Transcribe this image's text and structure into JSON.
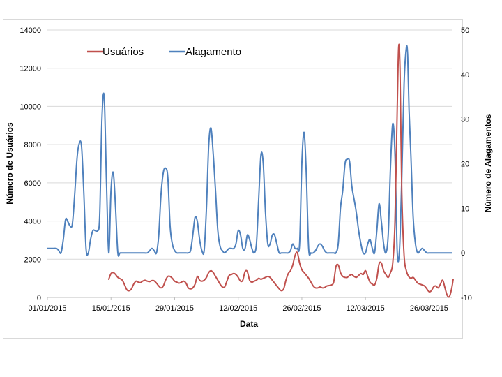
{
  "chart_data": {
    "type": "line",
    "title": "",
    "xlabel": "Data",
    "ylabel_left": "Número de Usuários",
    "ylabel_right": "Número de Alagamentos",
    "ylim_left": [
      0,
      14000
    ],
    "ylim_right": [
      -10,
      50
    ],
    "yticks_left": [
      "0",
      "2000",
      "4000",
      "6000",
      "8000",
      "10000",
      "12000",
      "14000"
    ],
    "yticks_right": [
      "-10",
      "0",
      "10",
      "20",
      "30",
      "40",
      "50"
    ],
    "xticks": [
      "01/01/2015",
      "15/01/2015",
      "29/01/2015",
      "12/02/2015",
      "26/02/2015",
      "12/03/2015",
      "26/03/2015"
    ],
    "x_start": "01/01/2015",
    "x_end": "28/03/2015",
    "grid": "horizontal",
    "legend_position": "top-left",
    "series": [
      {
        "name": "Usuários",
        "axis": "left",
        "color": "#c0504d",
        "points": [
          [
            13.5,
            950
          ],
          [
            14,
            1250
          ],
          [
            14.5,
            1300
          ],
          [
            15,
            1200
          ],
          [
            15.5,
            1050
          ],
          [
            16,
            980
          ],
          [
            16.5,
            900
          ],
          [
            17,
            650
          ],
          [
            17.5,
            400
          ],
          [
            18,
            350
          ],
          [
            18.5,
            450
          ],
          [
            19,
            700
          ],
          [
            19.5,
            850
          ],
          [
            20,
            800
          ],
          [
            20.5,
            780
          ],
          [
            21,
            860
          ],
          [
            21.5,
            900
          ],
          [
            22,
            850
          ],
          [
            22.5,
            830
          ],
          [
            23,
            880
          ],
          [
            23.5,
            870
          ],
          [
            24,
            750
          ],
          [
            24.5,
            600
          ],
          [
            25,
            500
          ],
          [
            25.5,
            600
          ],
          [
            26,
            900
          ],
          [
            26.5,
            1100
          ],
          [
            27,
            1100
          ],
          [
            27.5,
            1000
          ],
          [
            28,
            850
          ],
          [
            28.5,
            800
          ],
          [
            29,
            750
          ],
          [
            29.5,
            800
          ],
          [
            30,
            850
          ],
          [
            30.5,
            750
          ],
          [
            31,
            500
          ],
          [
            31.5,
            450
          ],
          [
            32,
            500
          ],
          [
            32.5,
            700
          ],
          [
            33,
            1100
          ],
          [
            33.5,
            900
          ],
          [
            34,
            850
          ],
          [
            34.5,
            900
          ],
          [
            35,
            1050
          ],
          [
            35.5,
            1300
          ],
          [
            36,
            1400
          ],
          [
            36.5,
            1300
          ],
          [
            37,
            1100
          ],
          [
            37.5,
            900
          ],
          [
            38,
            700
          ],
          [
            38.5,
            550
          ],
          [
            39,
            550
          ],
          [
            39.5,
            850
          ],
          [
            40,
            1150
          ],
          [
            40.5,
            1200
          ],
          [
            41,
            1250
          ],
          [
            41.5,
            1200
          ],
          [
            42,
            1050
          ],
          [
            42.5,
            850
          ],
          [
            43,
            900
          ],
          [
            43.5,
            1350
          ],
          [
            44,
            1350
          ],
          [
            44.5,
            900
          ],
          [
            45,
            800
          ],
          [
            45.5,
            850
          ],
          [
            46,
            900
          ],
          [
            46.5,
            1000
          ],
          [
            47,
            950
          ],
          [
            47.5,
            1000
          ],
          [
            48,
            1050
          ],
          [
            48.5,
            1100
          ],
          [
            49,
            1050
          ],
          [
            49.5,
            900
          ],
          [
            50,
            750
          ],
          [
            50.5,
            600
          ],
          [
            51,
            450
          ],
          [
            51.5,
            350
          ],
          [
            52,
            450
          ],
          [
            52.5,
            900
          ],
          [
            53,
            1250
          ],
          [
            53.5,
            1400
          ],
          [
            54,
            1700
          ],
          [
            54.5,
            2200
          ],
          [
            55,
            2350
          ],
          [
            55.5,
            1800
          ],
          [
            56,
            1450
          ],
          [
            56.5,
            1300
          ],
          [
            57,
            1150
          ],
          [
            57.5,
            1000
          ],
          [
            58,
            800
          ],
          [
            58.5,
            600
          ],
          [
            59,
            500
          ],
          [
            59.5,
            500
          ],
          [
            60,
            550
          ],
          [
            60.5,
            500
          ],
          [
            61,
            520
          ],
          [
            61.5,
            600
          ],
          [
            62,
            620
          ],
          [
            62.5,
            650
          ],
          [
            63,
            800
          ],
          [
            63.5,
            1600
          ],
          [
            64,
            1700
          ],
          [
            64.5,
            1300
          ],
          [
            65,
            1100
          ],
          [
            65.5,
            1050
          ],
          [
            66,
            1050
          ],
          [
            66.5,
            1150
          ],
          [
            67,
            1200
          ],
          [
            67.5,
            1100
          ],
          [
            68,
            1050
          ],
          [
            68.5,
            1150
          ],
          [
            69,
            1250
          ],
          [
            69.5,
            1200
          ],
          [
            70,
            1400
          ],
          [
            70.5,
            1100
          ],
          [
            71,
            800
          ],
          [
            71.5,
            700
          ],
          [
            72,
            650
          ],
          [
            72.5,
            1000
          ],
          [
            73,
            1750
          ],
          [
            73.5,
            1800
          ],
          [
            74,
            1400
          ],
          [
            74.5,
            1200
          ],
          [
            75,
            1050
          ],
          [
            75.5,
            1300
          ],
          [
            76,
            1800
          ],
          [
            76.5,
            4000
          ],
          [
            77,
            10000
          ],
          [
            77.3,
            13100
          ],
          [
            77.6,
            12000
          ],
          [
            78,
            5500
          ],
          [
            78.5,
            2200
          ],
          [
            79,
            1400
          ],
          [
            79.5,
            1100
          ],
          [
            80,
            1000
          ],
          [
            80.5,
            1050
          ],
          [
            81,
            900
          ],
          [
            81.5,
            750
          ],
          [
            82,
            700
          ],
          [
            82.5,
            650
          ],
          [
            83,
            600
          ],
          [
            83.5,
            450
          ],
          [
            84,
            300
          ],
          [
            84.5,
            350
          ],
          [
            85,
            550
          ],
          [
            85.5,
            600
          ],
          [
            86,
            500
          ],
          [
            86.5,
            700
          ],
          [
            87,
            900
          ],
          [
            87.5,
            500
          ],
          [
            88,
            100
          ],
          [
            88.5,
            50
          ],
          [
            89,
            500
          ],
          [
            89.3,
            950
          ]
        ]
      },
      {
        "name": "Alagamento",
        "axis": "right",
        "color": "#4f81bd",
        "points": [
          [
            0,
            1
          ],
          [
            1,
            1
          ],
          [
            2,
            1
          ],
          [
            2.5,
            0.5
          ],
          [
            3,
            0
          ],
          [
            3.5,
            3
          ],
          [
            4,
            7.5
          ],
          [
            4.5,
            7
          ],
          [
            5,
            6
          ],
          [
            5.5,
            6.5
          ],
          [
            6,
            13
          ],
          [
            6.5,
            21
          ],
          [
            7,
            24.5
          ],
          [
            7.5,
            24
          ],
          [
            8,
            14
          ],
          [
            8.5,
            1
          ],
          [
            9,
            0
          ],
          [
            9.5,
            3
          ],
          [
            10,
            5
          ],
          [
            10.5,
            5
          ],
          [
            11,
            5
          ],
          [
            11.5,
            8
          ],
          [
            12,
            30
          ],
          [
            12.5,
            35
          ],
          [
            13,
            16
          ],
          [
            13.5,
            0
          ],
          [
            14,
            14
          ],
          [
            14.5,
            18
          ],
          [
            15,
            10
          ],
          [
            15.5,
            0
          ],
          [
            16,
            0
          ],
          [
            17,
            0
          ],
          [
            18,
            0
          ],
          [
            19,
            0
          ],
          [
            20,
            0
          ],
          [
            21,
            0
          ],
          [
            22,
            0
          ],
          [
            22.5,
            0.5
          ],
          [
            23,
            1
          ],
          [
            23.5,
            0.5
          ],
          [
            24,
            0
          ],
          [
            24.5,
            4
          ],
          [
            25,
            13
          ],
          [
            25.5,
            18
          ],
          [
            26,
            19
          ],
          [
            26.5,
            17
          ],
          [
            27,
            6
          ],
          [
            27.5,
            2
          ],
          [
            28,
            0.5
          ],
          [
            28.5,
            0
          ],
          [
            29,
            0
          ],
          [
            30,
            0
          ],
          [
            30.5,
            0
          ],
          [
            31,
            0
          ],
          [
            31.5,
            0.5
          ],
          [
            32,
            4
          ],
          [
            32.5,
            8
          ],
          [
            33,
            7
          ],
          [
            33.5,
            3
          ],
          [
            34,
            0.5
          ],
          [
            34.5,
            0.5
          ],
          [
            35,
            10
          ],
          [
            35.5,
            24
          ],
          [
            36,
            28
          ],
          [
            36.5,
            22
          ],
          [
            37,
            14
          ],
          [
            37.5,
            5
          ],
          [
            38,
            1.5
          ],
          [
            38.5,
            0.5
          ],
          [
            39,
            0
          ],
          [
            39.5,
            0.5
          ],
          [
            40,
            1
          ],
          [
            40.5,
            1
          ],
          [
            41,
            1
          ],
          [
            41.5,
            2
          ],
          [
            42,
            5
          ],
          [
            42.5,
            4
          ],
          [
            43,
            1
          ],
          [
            43.5,
            1
          ],
          [
            44,
            4
          ],
          [
            44.5,
            3
          ],
          [
            45,
            1
          ],
          [
            45.5,
            0
          ],
          [
            46,
            2
          ],
          [
            46.5,
            12
          ],
          [
            47,
            22
          ],
          [
            47.5,
            20
          ],
          [
            48,
            9
          ],
          [
            48.5,
            2
          ],
          [
            49,
            2
          ],
          [
            49.5,
            4
          ],
          [
            50,
            4
          ],
          [
            50.5,
            2
          ],
          [
            51,
            0
          ],
          [
            51.5,
            0
          ],
          [
            52,
            0
          ],
          [
            52.5,
            0
          ],
          [
            53,
            0
          ],
          [
            53.5,
            0.5
          ],
          [
            54,
            2
          ],
          [
            54.5,
            1
          ],
          [
            55,
            1
          ],
          [
            55.5,
            2
          ],
          [
            56,
            20
          ],
          [
            56.5,
            27
          ],
          [
            57,
            17
          ],
          [
            57.5,
            1
          ],
          [
            58,
            0
          ],
          [
            58.5,
            0
          ],
          [
            59,
            0.5
          ],
          [
            59.5,
            1.5
          ],
          [
            60,
            2
          ],
          [
            60.5,
            1.5
          ],
          [
            61,
            0.5
          ],
          [
            61.5,
            0
          ],
          [
            62,
            0
          ],
          [
            63,
            0
          ],
          [
            63.5,
            0
          ],
          [
            64,
            2
          ],
          [
            64.5,
            10
          ],
          [
            65,
            14
          ],
          [
            65.5,
            20
          ],
          [
            66,
            21
          ],
          [
            66.5,
            20.5
          ],
          [
            67,
            15
          ],
          [
            67.5,
            12
          ],
          [
            68,
            9
          ],
          [
            68.5,
            5
          ],
          [
            69,
            2
          ],
          [
            69.5,
            0
          ],
          [
            70,
            0
          ],
          [
            70.5,
            2
          ],
          [
            71,
            3
          ],
          [
            71.5,
            1
          ],
          [
            72,
            0
          ],
          [
            72.5,
            5
          ],
          [
            73,
            11
          ],
          [
            73.5,
            7
          ],
          [
            74,
            2
          ],
          [
            74.5,
            0
          ],
          [
            75,
            4
          ],
          [
            75.5,
            19
          ],
          [
            76,
            29
          ],
          [
            76.5,
            22
          ],
          [
            77,
            0
          ],
          [
            77.5,
            1
          ],
          [
            78,
            17
          ],
          [
            78.5,
            38
          ],
          [
            79,
            46
          ],
          [
            79.3,
            44
          ],
          [
            79.6,
            32
          ],
          [
            80,
            22
          ],
          [
            80.5,
            8
          ],
          [
            81,
            2
          ],
          [
            81.5,
            0
          ],
          [
            82,
            0.5
          ],
          [
            82.5,
            1
          ],
          [
            83,
            0.5
          ],
          [
            83.5,
            0
          ],
          [
            84,
            0
          ],
          [
            85,
            0
          ],
          [
            86,
            0
          ],
          [
            87,
            0
          ],
          [
            88,
            0
          ],
          [
            89,
            0
          ]
        ]
      }
    ]
  }
}
